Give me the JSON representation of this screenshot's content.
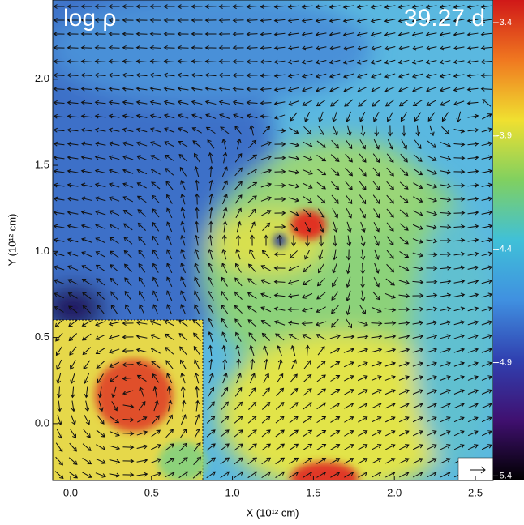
{
  "chart_data": {
    "type": "field",
    "title": "log ρ",
    "annotation": "39.27 d",
    "x_label": "X (10¹² cm)",
    "y_label": "Y (10¹² cm)",
    "xlim": [
      -0.11,
      2.61
    ],
    "ylim": [
      -0.33,
      2.46
    ],
    "xticks": [
      {
        "value": 0,
        "label": "0.0"
      },
      0.5,
      {
        "value": 1,
        "label": "1.0"
      },
      1.5,
      {
        "value": 2,
        "label": "2.0"
      },
      2.5
    ],
    "yticks": [
      {
        "value": 0,
        "label": "0.0"
      },
      0.5,
      {
        "value": 1,
        "label": "1.0"
      },
      1.5,
      {
        "value": 2,
        "label": "2.0"
      }
    ],
    "colorbar": {
      "lim": [
        -5.42,
        -3.3
      ],
      "ticks": [
        -3.4,
        -3.9,
        -4.4,
        -4.9,
        -5.4
      ],
      "colors": [
        "#d01818",
        "#f07820",
        "#f0e030",
        "#80d060",
        "#40c0d8",
        "#4090e0",
        "#3040b0",
        "#401070",
        "#000000"
      ]
    }
  }
}
